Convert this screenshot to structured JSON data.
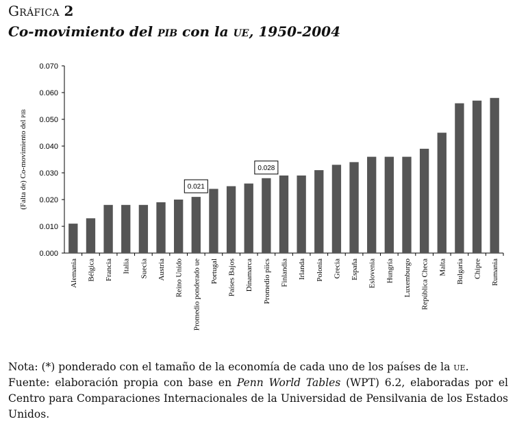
{
  "figure": {
    "label_word": "Gráfica",
    "label_number": "2",
    "title_pre": "Co-movimiento del ",
    "title_sc1": "pib",
    "title_mid": " con la ",
    "title_sc2": "ue",
    "title_post": ", 1950-2004"
  },
  "notes": {
    "note_pre": "Nota: (*) ponderado con el tamaño de la economía de cada uno de los países de la ",
    "note_sc": "ue",
    "note_post": ".",
    "source_pre": "Fuente: elaboración propia con base en ",
    "source_italic": "Penn World Tables",
    "source_post": " (WPT) 6.2, elaboradas por el Centro para Comparaciones Internacionales de la Universidad de Pensilvania de los Estados Unidos."
  },
  "colors": {
    "bar": "#555555",
    "axis": "#000000"
  },
  "chart_data": {
    "type": "bar",
    "title": "Co-movimiento del PIB con la UE, 1950-2004",
    "ylabel_pre": "(Falta de) Co-movimiento del ",
    "ylabel_sc": "pib",
    "ylim": [
      0,
      0.07
    ],
    "yticks": [
      "0.000",
      "0.010",
      "0.020",
      "0.030",
      "0.040",
      "0.050",
      "0.060",
      "0.070"
    ],
    "categories": [
      "Alemania",
      "Bélgica",
      "Francia",
      "Italia",
      "Suecia",
      "Austria",
      "Reino Unido",
      "Promedio ponderado ue",
      "Portugal",
      "Países Bajos",
      "Dinamarca",
      "Promedio piics",
      "Finlandia",
      "Irlanda",
      "Polonia",
      "Grecia",
      "España",
      "Eslovenia",
      "Hungría",
      "Luxemburgo",
      "República Checa",
      "Malta",
      "Bulgaria",
      "Chipre",
      "Rumania"
    ],
    "values": [
      0.011,
      0.013,
      0.018,
      0.018,
      0.018,
      0.019,
      0.02,
      0.021,
      0.024,
      0.025,
      0.026,
      0.028,
      0.029,
      0.029,
      0.031,
      0.033,
      0.034,
      0.036,
      0.036,
      0.036,
      0.039,
      0.045,
      0.056,
      0.057,
      0.058
    ],
    "data_labels": [
      {
        "index": 7,
        "text": "0.021"
      },
      {
        "index": 11,
        "text": "0.028"
      }
    ],
    "grid": false,
    "legend": "none"
  }
}
